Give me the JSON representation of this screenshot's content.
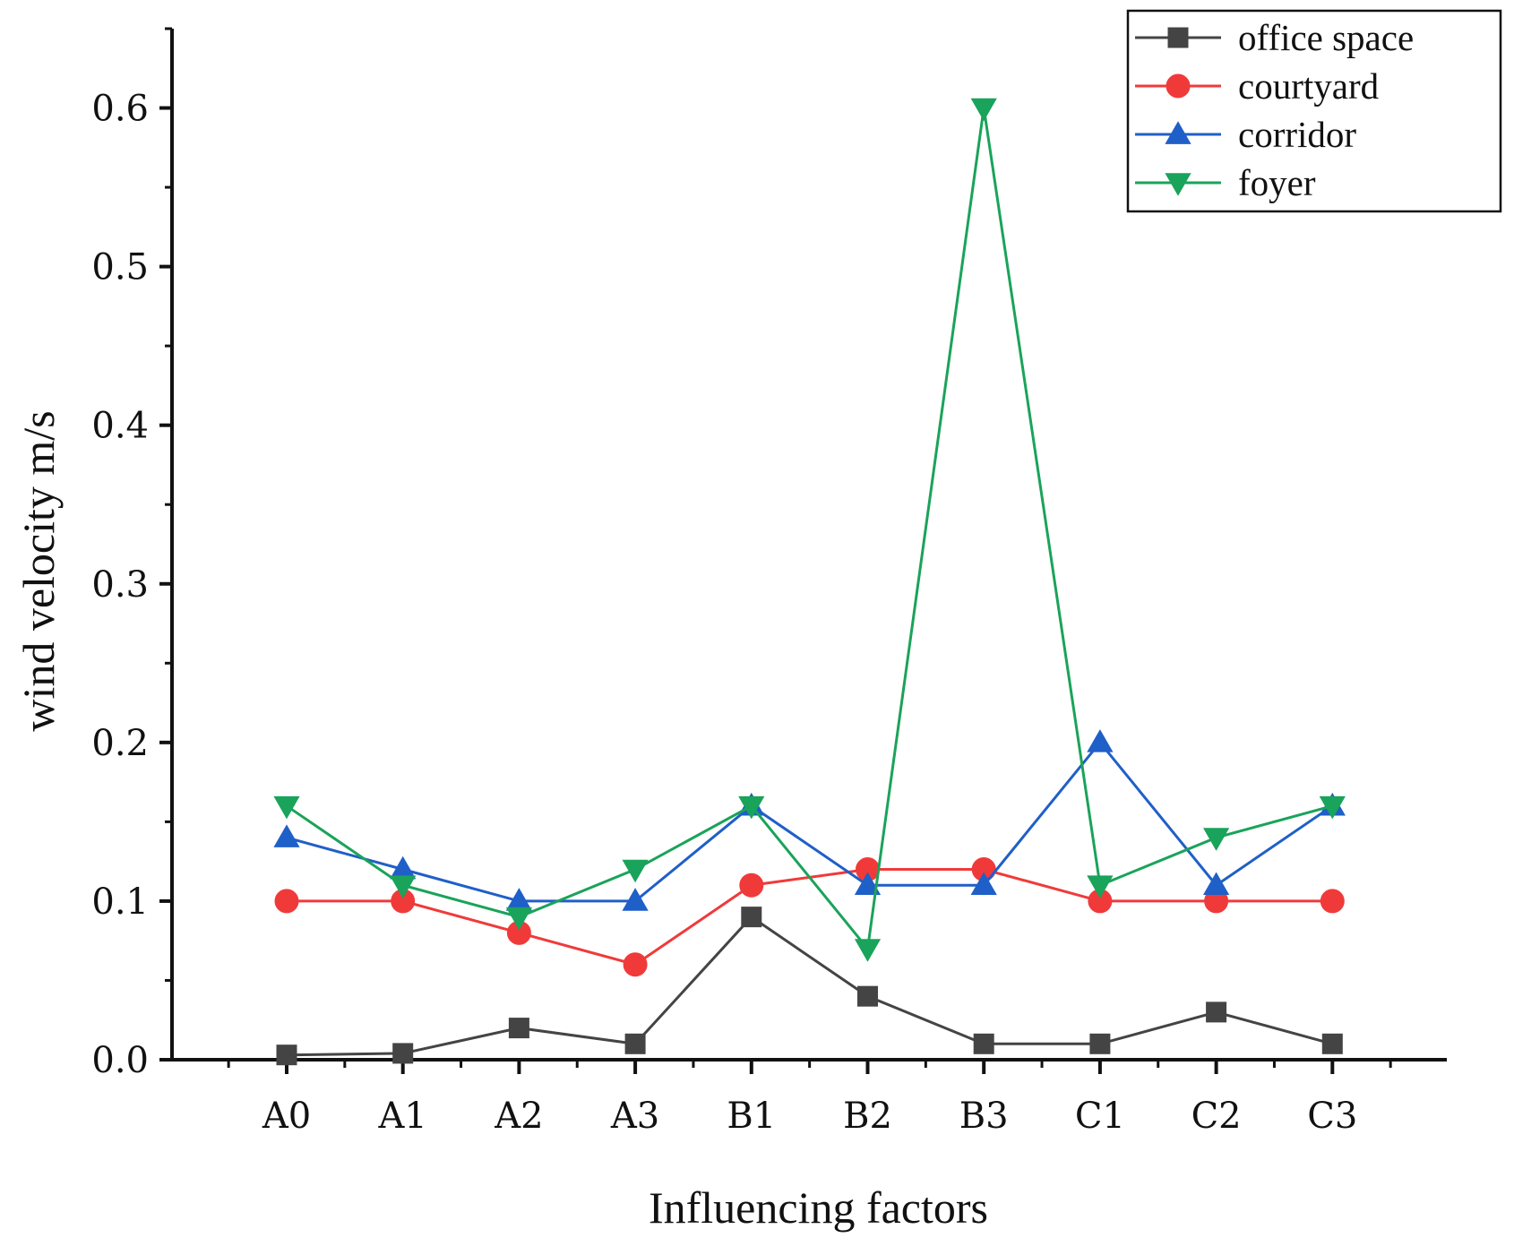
{
  "chart_data": {
    "type": "line",
    "title": "",
    "xlabel": "Influencing factors",
    "ylabel": "wind velocity  m/s",
    "categories": [
      "A0",
      "A1",
      "A2",
      "A3",
      "B1",
      "B2",
      "B3",
      "C1",
      "C2",
      "C3"
    ],
    "ylim": [
      0,
      0.65
    ],
    "yticks": [
      "0.0",
      "0.1",
      "0.2",
      "0.3",
      "0.4",
      "0.5",
      "0.6"
    ],
    "grid": false,
    "legend_position": "top-right",
    "series": [
      {
        "name": "office space",
        "marker": "square",
        "color": "#444444",
        "values": [
          0.003,
          0.004,
          0.02,
          0.01,
          0.09,
          0.04,
          0.01,
          0.01,
          0.03,
          0.01
        ]
      },
      {
        "name": "courtyard",
        "marker": "circle",
        "color": "#f03a3a",
        "values": [
          0.1,
          0.1,
          0.08,
          0.06,
          0.11,
          0.12,
          0.12,
          0.1,
          0.1,
          0.1
        ]
      },
      {
        "name": "corridor",
        "marker": "triangle-up",
        "color": "#1f5fc8",
        "values": [
          0.14,
          0.12,
          0.1,
          0.1,
          0.16,
          0.11,
          0.11,
          0.2,
          0.11,
          0.16
        ]
      },
      {
        "name": "foyer",
        "marker": "triangle-down",
        "color": "#1aa35a",
        "values": [
          0.16,
          0.11,
          0.09,
          0.12,
          0.16,
          0.07,
          0.6,
          0.11,
          0.14,
          0.16
        ]
      }
    ]
  }
}
